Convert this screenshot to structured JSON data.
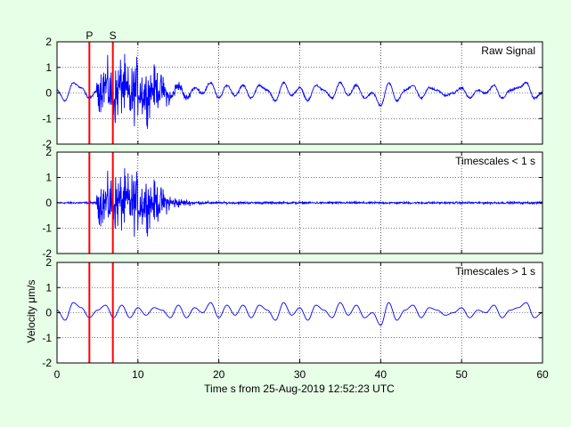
{
  "chart_data": {
    "type": "line",
    "xlabel": "Time s from 25-Aug-2019 12:52:23 UTC",
    "ylabel": "Velocity μm/s",
    "xlim": [
      0,
      60
    ],
    "x_ticks": [
      "0",
      "10",
      "20",
      "30",
      "40",
      "50",
      "60"
    ],
    "y_ticks": [
      "-2",
      "-1",
      "0",
      "1",
      "2"
    ],
    "ylim": [
      -2,
      2
    ],
    "grid": true,
    "line_color": "#0000ff",
    "marker_color": "#ff0000",
    "phase_markers": [
      {
        "name": "P",
        "x": 4.0
      },
      {
        "name": "S",
        "x": 6.9
      }
    ],
    "panels": [
      {
        "label": "Raw Signal",
        "kind": "raw"
      },
      {
        "label": "Timescales < 1 s",
        "kind": "high"
      },
      {
        "label": "Timescales > 1 s",
        "kind": "low"
      }
    ],
    "low_period_trace": {
      "x": [
        0,
        1,
        2,
        3,
        4,
        5,
        6,
        7,
        8,
        9,
        10,
        11,
        12,
        13,
        14,
        15,
        16,
        17,
        18,
        19,
        20,
        21,
        22,
        23,
        24,
        25,
        26,
        27,
        28,
        29,
        30,
        31,
        32,
        33,
        34,
        35,
        36,
        37,
        38,
        39,
        40,
        41,
        42,
        43,
        44,
        45,
        46,
        47,
        48,
        49,
        50,
        51,
        52,
        53,
        54,
        55,
        56,
        57,
        58,
        59,
        60
      ],
      "y": [
        0.1,
        -0.3,
        0.4,
        0.2,
        -0.2,
        0.1,
        0.3,
        -0.2,
        0.3,
        -0.2,
        0.2,
        -0.1,
        0.2,
        0.1,
        -0.2,
        0.3,
        -0.2,
        0.2,
        0.0,
        0.4,
        -0.2,
        0.3,
        -0.1,
        0.3,
        -0.2,
        0.3,
        0.1,
        -0.3,
        0.4,
        -0.1,
        0.2,
        -0.3,
        0.3,
        0.1,
        -0.2,
        0.4,
        -0.1,
        0.3,
        -0.2,
        0.0,
        -0.5,
        0.4,
        -0.3,
        0.1,
        0.3,
        -0.2,
        0.2,
        0.1,
        -0.1,
        0.0,
        0.2,
        -0.2,
        0.1,
        0.0,
        0.3,
        -0.2,
        0.1,
        0.2,
        0.4,
        -0.2,
        0.0
      ]
    },
    "high_burst": {
      "start": 4.8,
      "peak_end": 12.6,
      "decay_end": 19.0,
      "amplitude": 1.5,
      "noise": 0.05
    }
  }
}
